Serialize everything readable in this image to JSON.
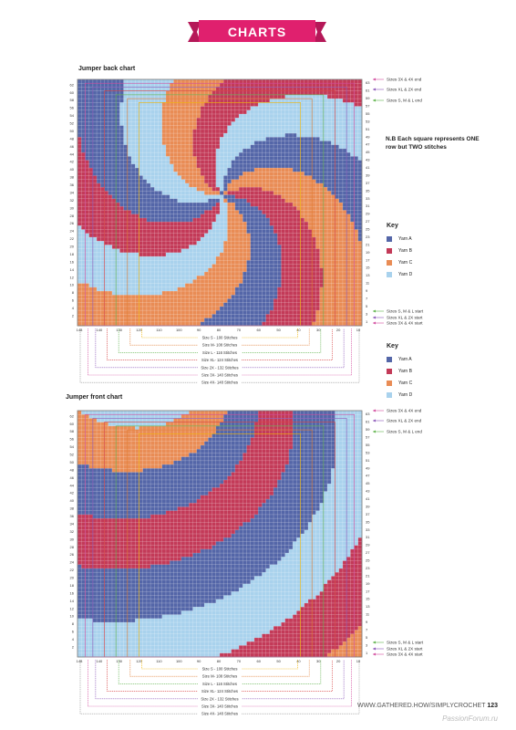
{
  "header": {
    "title": "CHARTS",
    "color": "#e0206e"
  },
  "colors": {
    "A": "#5466a8",
    "B": "#c33a58",
    "C": "#e98c55",
    "D": "#a9d2ed"
  },
  "charts": [
    {
      "title": "Jumper back chart",
      "pattern": "back",
      "right_labels": [
        "Sizes 3X & 4X end",
        "Sizes XL & 2X end",
        "Sizes S, M & L end",
        "Sizes S, M & L start",
        "Sizes XL & 2X start",
        "Sizes 3X & 4X start"
      ],
      "size_labels": [
        "Size S - 100 Stitches",
        "Size M- 108 Stitches",
        "Size L - 116 Stitches",
        "Size XL- 124 Stitches",
        "Size 2X - 132 Stitches",
        "Size 3X- 140 Stitches",
        "Size 4X- 148 Stitches"
      ]
    },
    {
      "title": "Jumper front chart",
      "pattern": "front",
      "right_labels": [
        "Sizes 3X & 4X end",
        "Sizes XL & 2X end",
        "Sizes S, M & L end",
        "Sizes S, M & L start",
        "Sizes XL & 2X start",
        "Sizes 3X & 4X start"
      ],
      "size_labels": [
        "Size S - 100 Stitches",
        "Size M- 108 Stitches",
        "Size L - 116 Stitches",
        "Size XL- 124 Stitches",
        "Size 2X - 132 Stitches",
        "Size 3X- 140 Stitches",
        "Size 4X- 148 Stitches"
      ]
    }
  ],
  "row_labels": [
    "62",
    "60",
    "58",
    "56",
    "54",
    "52",
    "50",
    "48",
    "46",
    "44",
    "42",
    "40",
    "38",
    "36",
    "34",
    "32",
    "30",
    "28",
    "26",
    "24",
    "22",
    "20",
    "18",
    "16",
    "14",
    "12",
    "10",
    "8",
    "6",
    "4",
    "2"
  ],
  "row_labels_right": [
    "63",
    "61",
    "59",
    "57",
    "55",
    "53",
    "51",
    "49",
    "47",
    "45",
    "43",
    "41",
    "39",
    "37",
    "35",
    "33",
    "31",
    "29",
    "27",
    "25",
    "23",
    "21",
    "19",
    "17",
    "15",
    "13",
    "11",
    "9",
    "7",
    "5",
    "3",
    "1"
  ],
  "col_labels": [
    "148",
    "140",
    "130",
    "120",
    "110",
    "100",
    "90",
    "80",
    "70",
    "60",
    "50",
    "40",
    "30",
    "20",
    "10"
  ],
  "note": "N.B Each square represents ONE row but TWO stitches",
  "key": {
    "title": "Key",
    "items": [
      {
        "label": "Yarn A",
        "color": "#5466a8"
      },
      {
        "label": "Yarn B",
        "color": "#c33a58"
      },
      {
        "label": "Yarn C",
        "color": "#e98c55"
      },
      {
        "label": "Yarn D",
        "color": "#a9d2ed"
      }
    ]
  },
  "footer": {
    "url": "WWW.GATHERED.HOW/SIMPLYCROCHET",
    "page": "123"
  },
  "watermark": "PassionForum.ru"
}
